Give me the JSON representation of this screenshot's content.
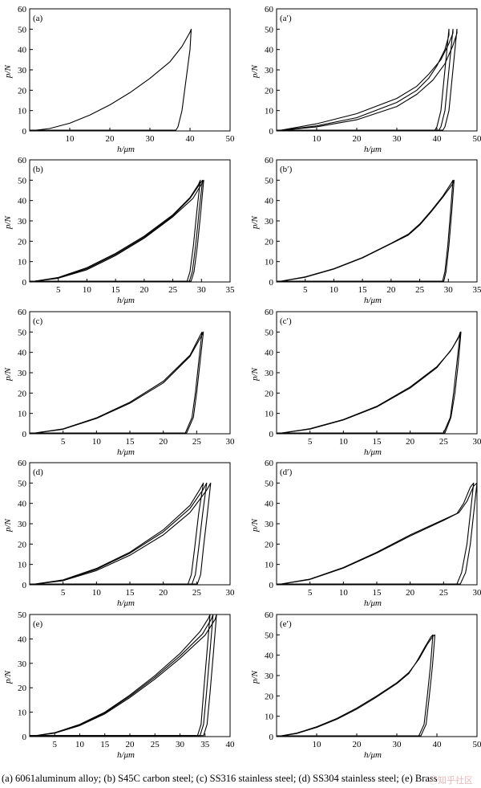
{
  "figure": {
    "caption": "(a) 6061aluminum alloy; (b) S45C carbon steel; (c) SS316 stainless steel; (d) SS304 stainless steel; (e) Brass",
    "watermark": "ⓒ知乎社区"
  },
  "chart_data": [
    {
      "type": "line",
      "panel_label": "(a)",
      "xlabel": "h/μm",
      "ylabel": "p/N",
      "xlim": [
        0,
        50
      ],
      "ylim": [
        0,
        60
      ],
      "xticks": [
        10,
        20,
        30,
        40,
        50
      ],
      "yticks": [
        0,
        10,
        20,
        30,
        40,
        50,
        60
      ],
      "series": [
        {
          "x": [
            0,
            5,
            10,
            15,
            20,
            25,
            30,
            35,
            38,
            40,
            40.3,
            40,
            39,
            38,
            37,
            36.5,
            0
          ],
          "y": [
            0,
            1.2,
            3.8,
            7.8,
            12.8,
            18.8,
            25.8,
            34,
            41.5,
            48.5,
            50,
            40,
            25,
            10,
            2,
            0.4,
            0.4
          ]
        }
      ]
    },
    {
      "type": "line",
      "panel_label": "(a′)",
      "xlabel": "h/μm",
      "ylabel": "p/N",
      "xlim": [
        0,
        50
      ],
      "ylim": [
        0,
        60
      ],
      "xticks": [
        10,
        20,
        30,
        40,
        50
      ],
      "yticks": [
        0,
        10,
        20,
        30,
        40,
        50,
        60
      ],
      "series": [
        {
          "x": [
            0,
            10,
            20,
            30,
            35,
            38,
            40,
            42,
            43,
            43,
            42,
            41,
            40,
            39.5,
            0
          ],
          "y": [
            0,
            2.5,
            6.5,
            14,
            20,
            26,
            32,
            40,
            47,
            50,
            30,
            10,
            2,
            0.4,
            0.4
          ]
        },
        {
          "x": [
            0,
            10,
            20,
            30,
            35,
            38,
            41,
            43,
            44,
            44,
            43,
            42,
            41,
            40.5,
            0
          ],
          "y": [
            0,
            3.5,
            8.5,
            16,
            22,
            28,
            35,
            43,
            48,
            50,
            30,
            10,
            2,
            0.4,
            0.4
          ]
        },
        {
          "x": [
            0,
            10,
            20,
            30,
            35,
            39,
            42,
            44,
            45,
            45,
            44,
            43,
            42,
            41.5,
            0
          ],
          "y": [
            0,
            2,
            5.5,
            12,
            18,
            25,
            33,
            42,
            48,
            50,
            30,
            10,
            2,
            0.4,
            0.4
          ]
        }
      ]
    },
    {
      "type": "line",
      "panel_label": "(b)",
      "xlabel": "h/μm",
      "ylabel": "p/N",
      "xlim": [
        0,
        35
      ],
      "ylim": [
        0,
        60
      ],
      "xticks": [
        5,
        10,
        15,
        20,
        25,
        30,
        35
      ],
      "yticks": [
        0,
        10,
        20,
        30,
        40,
        50,
        60
      ],
      "series": [
        {
          "x": [
            0,
            5,
            10,
            15,
            20,
            25,
            28,
            29.5,
            29.8,
            29.2,
            28.6,
            28,
            27.5,
            0
          ],
          "y": [
            0,
            2.2,
            7,
            14,
            22.5,
            33,
            41.5,
            48,
            50,
            35,
            18,
            5,
            0.4,
            0.4
          ]
        },
        {
          "x": [
            0,
            5,
            10,
            15,
            20,
            25,
            28,
            29.8,
            30.2,
            29.6,
            29,
            28.4,
            27.9,
            0
          ],
          "y": [
            0,
            2,
            6.5,
            13.5,
            22,
            32.5,
            41,
            48.5,
            50,
            35,
            18,
            5,
            0.4,
            0.4
          ]
        },
        {
          "x": [
            0,
            5,
            10,
            15,
            20,
            25,
            28.5,
            30,
            30.4,
            29.9,
            29.3,
            28.7,
            28.2,
            0
          ],
          "y": [
            0,
            1.8,
            6,
            13,
            21.5,
            32,
            41,
            48,
            50,
            35,
            18,
            5,
            0.4,
            0.4
          ]
        }
      ]
    },
    {
      "type": "line",
      "panel_label": "(b′)",
      "xlabel": "h/μm",
      "ylabel": "p/N",
      "xlim": [
        0,
        35
      ],
      "ylim": [
        0,
        60
      ],
      "xticks": [
        5,
        10,
        15,
        20,
        25,
        30,
        35
      ],
      "yticks": [
        0,
        10,
        20,
        30,
        40,
        50,
        60
      ],
      "series": [
        {
          "x": [
            0,
            5,
            10,
            15,
            20,
            23,
            25,
            27,
            29,
            30.5,
            30.8,
            30.4,
            29.9,
            29.4,
            29,
            0
          ],
          "y": [
            0,
            2.5,
            6.5,
            12,
            19,
            23.5,
            28.5,
            35,
            42,
            48.5,
            50,
            35,
            18,
            5,
            0.4,
            0.4
          ]
        },
        {
          "x": [
            0,
            5,
            10,
            15,
            20,
            23,
            25,
            27,
            29,
            30.7,
            31,
            30.6,
            30.1,
            29.6,
            29.2,
            0
          ],
          "y": [
            0,
            2.3,
            6.3,
            11.8,
            18.8,
            23,
            28,
            34.5,
            41.5,
            48,
            50,
            35,
            18,
            5,
            0.4,
            0.4
          ]
        }
      ]
    },
    {
      "type": "line",
      "panel_label": "(c)",
      "xlabel": "h/μm",
      "ylabel": "p/N",
      "xlim": [
        0,
        30
      ],
      "ylim": [
        0,
        60
      ],
      "xticks": [
        5,
        10,
        15,
        20,
        25,
        30
      ],
      "yticks": [
        0,
        10,
        20,
        30,
        40,
        50,
        60
      ],
      "series": [
        {
          "x": [
            0,
            5,
            10,
            15,
            20,
            24,
            25.7,
            26,
            25.5,
            25,
            24.5,
            23.5,
            0
          ],
          "y": [
            0,
            2.2,
            7.5,
            15,
            25,
            38,
            48,
            50,
            35,
            20,
            8,
            0.4,
            0.4
          ]
        },
        {
          "x": [
            0,
            5,
            10,
            15,
            20,
            24,
            25.5,
            25.8,
            25.3,
            24.8,
            24.3,
            23.3,
            0
          ],
          "y": [
            0,
            2.4,
            7.8,
            15.5,
            25.8,
            38.6,
            48.2,
            50,
            35,
            20,
            8,
            0.4,
            0.4
          ]
        }
      ]
    },
    {
      "type": "line",
      "panel_label": "(c′)",
      "xlabel": "h/μm",
      "ylabel": "p/N",
      "xlim": [
        0,
        30
      ],
      "ylim": [
        0,
        60
      ],
      "xticks": [
        5,
        10,
        15,
        20,
        25,
        30
      ],
      "yticks": [
        0,
        10,
        20,
        30,
        40,
        50,
        60
      ],
      "series": [
        {
          "x": [
            0,
            5,
            10,
            15,
            20,
            24,
            26,
            27.2,
            27.5,
            27,
            26.5,
            26,
            25,
            0
          ],
          "y": [
            0,
            2.5,
            7,
            13.5,
            23,
            33,
            40.5,
            47,
            50,
            35,
            20,
            8,
            0.4,
            0.4
          ]
        },
        {
          "x": [
            0,
            5,
            10,
            15,
            20,
            24,
            26.3,
            27.3,
            27.6,
            27.2,
            26.7,
            26.1,
            25.2,
            0
          ],
          "y": [
            0,
            2.3,
            6.8,
            13.2,
            22.5,
            32.5,
            42,
            48,
            50,
            35,
            20,
            8,
            0.4,
            0.4
          ]
        }
      ]
    },
    {
      "type": "line",
      "panel_label": "(d)",
      "xlabel": "h/μm",
      "ylabel": "p/N",
      "xlim": [
        0,
        30
      ],
      "ylim": [
        0,
        60
      ],
      "xticks": [
        5,
        10,
        15,
        20,
        25,
        30
      ],
      "yticks": [
        0,
        10,
        20,
        30,
        40,
        50,
        60
      ],
      "series": [
        {
          "x": [
            0,
            5,
            10,
            15,
            20,
            24,
            25.5,
            26,
            25.3,
            24.7,
            24.2,
            23.7,
            0
          ],
          "y": [
            0,
            2.4,
            8,
            16,
            27,
            39,
            47,
            50,
            35,
            18,
            5,
            0.4,
            0.4
          ]
        },
        {
          "x": [
            0,
            5,
            10,
            15,
            20,
            24,
            26,
            26.5,
            25.9,
            25.3,
            24.8,
            24.3,
            0
          ],
          "y": [
            0,
            2.2,
            7.6,
            15.5,
            26,
            37.5,
            47,
            50,
            35,
            18,
            5,
            0.4,
            0.4
          ]
        },
        {
          "x": [
            0,
            5,
            10,
            15,
            20,
            24,
            26.5,
            27.1,
            26.6,
            26,
            25.6,
            25.1,
            0
          ],
          "y": [
            0,
            2,
            7,
            14.5,
            24.5,
            35.5,
            46.5,
            50,
            35,
            18,
            5,
            0.4,
            0.4
          ]
        }
      ]
    },
    {
      "type": "line",
      "panel_label": "(d′)",
      "xlabel": "h/μm",
      "ylabel": "p/N",
      "xlim": [
        0,
        30
      ],
      "ylim": [
        0,
        60
      ],
      "xticks": [
        5,
        10,
        15,
        20,
        25,
        30
      ],
      "yticks": [
        0,
        10,
        20,
        30,
        40,
        50,
        60
      ],
      "series": [
        {
          "x": [
            0,
            5,
            10,
            15,
            20,
            25,
            27,
            28,
            29,
            29.5,
            29,
            28.5,
            27.7,
            27,
            0
          ],
          "y": [
            0,
            2.8,
            8.5,
            16,
            24.5,
            32,
            35,
            40,
            48,
            50,
            35,
            20,
            6,
            0.4,
            0.4
          ]
        },
        {
          "x": [
            0,
            5,
            10,
            15,
            20,
            25,
            27.3,
            28.5,
            29.5,
            30,
            29.5,
            29,
            28.3,
            27.5,
            0
          ],
          "y": [
            0,
            2.6,
            8.2,
            15.6,
            24,
            31.6,
            35.5,
            41,
            48.5,
            50,
            35,
            20,
            6,
            0.4,
            0.4
          ]
        }
      ]
    },
    {
      "type": "line",
      "panel_label": "(e)",
      "xlabel": "h/μm",
      "ylabel": "p/N",
      "xlim": [
        0,
        40
      ],
      "ylim": [
        0,
        50
      ],
      "xticks": [
        5,
        10,
        15,
        20,
        25,
        30,
        35,
        40
      ],
      "yticks": [
        0,
        10,
        20,
        30,
        40,
        50
      ],
      "series": [
        {
          "x": [
            0,
            5,
            10,
            15,
            20,
            25,
            30,
            34,
            35.7,
            36,
            35.4,
            34.7,
            34.2,
            33.5,
            0
          ],
          "y": [
            0,
            1.6,
            5,
            10,
            17,
            25,
            34,
            43,
            48.5,
            50,
            35,
            18,
            5,
            0.4,
            0.4
          ]
        },
        {
          "x": [
            0,
            5,
            10,
            15,
            20,
            25,
            30,
            34.5,
            36.3,
            36.6,
            36,
            35.3,
            34.7,
            34,
            0
          ],
          "y": [
            0,
            1.5,
            4.8,
            9.7,
            16.5,
            24.3,
            33,
            42,
            48.3,
            50,
            35,
            18,
            5,
            0.4,
            0.4
          ]
        },
        {
          "x": [
            0,
            5,
            10,
            15,
            20,
            25,
            30,
            35,
            37,
            37.3,
            36.7,
            36,
            35.4,
            34.7,
            0
          ],
          "y": [
            0,
            1.4,
            4.5,
            9.3,
            16,
            23.6,
            32,
            41.5,
            48,
            50,
            35,
            18,
            5,
            0.4,
            0.4
          ]
        }
      ]
    },
    {
      "type": "line",
      "panel_label": "(e′)",
      "xlabel": "h/μm",
      "ylabel": "p/N",
      "xlim": [
        0,
        50
      ],
      "ylim": [
        0,
        60
      ],
      "xticks": [
        10,
        20,
        30,
        40,
        50
      ],
      "yticks": [
        0,
        10,
        20,
        30,
        40,
        50,
        60
      ],
      "series": [
        {
          "x": [
            0,
            5,
            10,
            15,
            20,
            25,
            30,
            33,
            35,
            37,
            38.5,
            39,
            38.4,
            37.5,
            36.8,
            35.5,
            0
          ],
          "y": [
            0,
            1.5,
            4.5,
            8.5,
            13.5,
            19.5,
            26,
            31,
            37,
            44,
            49,
            50,
            35,
            18,
            6,
            0.4,
            0.4
          ]
        },
        {
          "x": [
            0,
            5,
            10,
            15,
            20,
            25,
            30,
            33,
            35.5,
            37.5,
            39,
            39.5,
            38.9,
            38,
            37.3,
            36,
            0
          ],
          "y": [
            0,
            1.7,
            4.8,
            8.9,
            14,
            20,
            26.5,
            31.5,
            38,
            45,
            49.3,
            50,
            35,
            18,
            6,
            0.4,
            0.4
          ]
        }
      ]
    }
  ]
}
